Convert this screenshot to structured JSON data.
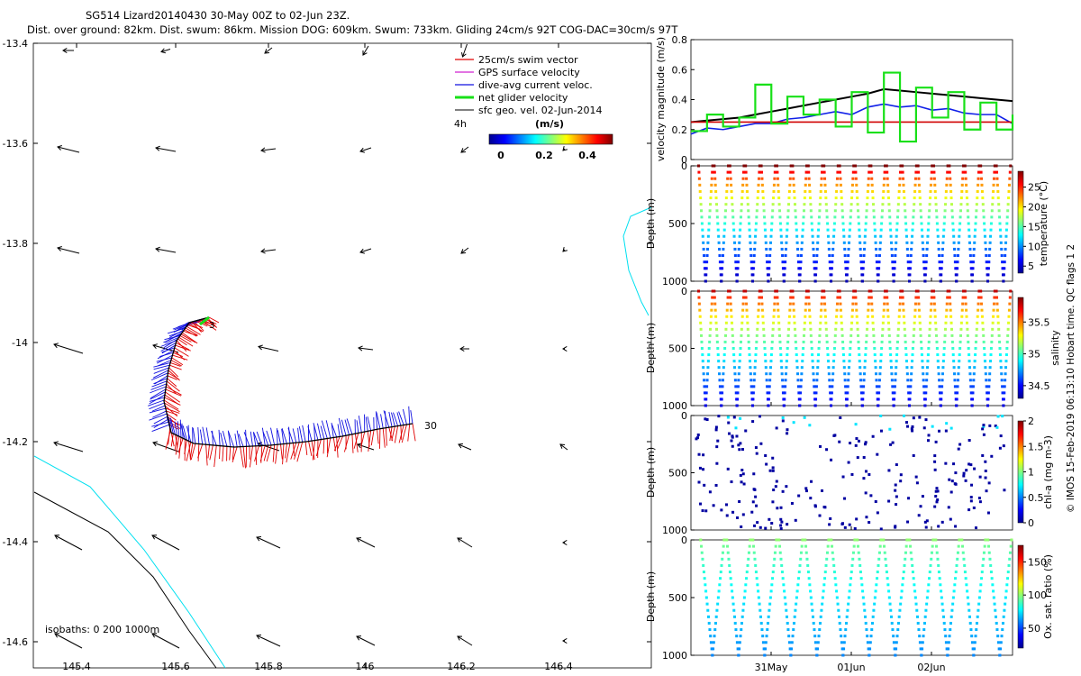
{
  "title": {
    "line1": "SG514 Lizard20140430 30-May 00Z to 02-Jun 23Z.",
    "line2": "Dist. over ground: 82km. Dist. swum: 86km. Mission DOG: 609km. Swum: 733km. Gliding 24cm/s 92T COG-DAC=30cm/s 97T"
  },
  "legend": {
    "items": [
      {
        "label": "25cm/s swim vector",
        "color": "#e00000"
      },
      {
        "label": "GPS surface velocity",
        "color": "#d020d0"
      },
      {
        "label": "dive-avg current veloc.",
        "color": "#1010e0"
      },
      {
        "label": "net glider velocity",
        "color": "#18e018"
      },
      {
        "label": "sfc geo. vel. 02-Jun-2014",
        "color": "#000000"
      }
    ],
    "scale_label": "4h",
    "colorbar_unit": "(m/s)",
    "colorbar_ticks": [
      "0",
      "0.2",
      "0.4"
    ]
  },
  "map": {
    "xticks": [
      "145.4",
      "145.6",
      "145.8",
      "146",
      "146.2",
      "146.4"
    ],
    "yticks": [
      "-13.4",
      "-13.6",
      "-13.8",
      "-14",
      "-14.2",
      "-14.4",
      "-14.6"
    ],
    "isobaths_label": "isobaths: 0   200  1000m",
    "start_label": "3",
    "end_label": "30"
  },
  "side_label": "© IMOS 15-Feb-2019 06:13:10 Hobart time. QC flags 1  2",
  "time_axis": [
    "31May",
    "01Jun",
    "02Jun"
  ],
  "chart_data": [
    {
      "type": "line",
      "ylabel": "velocity magnitude (m/s)",
      "ylim": [
        0,
        0.8
      ],
      "yticks": [
        "0",
        "0.2",
        "0.4",
        "0.6",
        "0.8"
      ],
      "x_days": [
        0,
        0.2,
        0.4,
        0.6,
        0.8,
        1.0,
        1.2,
        1.4,
        1.6,
        1.8,
        2.0,
        2.2,
        2.4,
        2.6,
        2.8,
        3.0,
        3.2,
        3.4,
        3.6,
        3.8,
        4.0
      ],
      "series": [
        {
          "color": "#000000",
          "values": [
            0.25,
            0.26,
            0.27,
            0.28,
            0.3,
            0.32,
            0.34,
            0.36,
            0.38,
            0.4,
            0.42,
            0.44,
            0.47,
            0.46,
            0.45,
            0.44,
            0.43,
            0.42,
            0.41,
            0.4,
            0.39
          ]
        },
        {
          "color": "#1020e8",
          "values": [
            0.17,
            0.21,
            0.2,
            0.22,
            0.24,
            0.24,
            0.27,
            0.28,
            0.3,
            0.32,
            0.3,
            0.35,
            0.37,
            0.35,
            0.36,
            0.33,
            0.34,
            0.31,
            0.3,
            0.3,
            0.24
          ]
        },
        {
          "color": "#d00000",
          "values": [
            0.25,
            0.25,
            0.25,
            0.25,
            0.25,
            0.25,
            0.25,
            0.25,
            0.25,
            0.25,
            0.25,
            0.25,
            0.25,
            0.25,
            0.25,
            0.25,
            0.25,
            0.25,
            0.25,
            0.25,
            0.25
          ]
        },
        {
          "color": "#18e018",
          "values": [
            0.19,
            0.3,
            0.22,
            0.28,
            0.5,
            0.24,
            0.42,
            0.3,
            0.4,
            0.22,
            0.45,
            0.18,
            0.58,
            0.12,
            0.48,
            0.28,
            0.45,
            0.2,
            0.38,
            0.2,
            0.3
          ]
        }
      ]
    },
    {
      "type": "scatter",
      "ylabel": "Depth (m)",
      "ylim": [
        1000,
        0
      ],
      "yticks": [
        "0",
        "500",
        "1000"
      ],
      "colorbar_label": "temperature (°C)",
      "colorbar_ticks": [
        "5",
        "10",
        "15",
        "20",
        "25"
      ],
      "colorbar_range": [
        3,
        29
      ],
      "dives": 20,
      "surface_value": 29,
      "deep_value": 4
    },
    {
      "type": "scatter",
      "ylabel": "Depth (m)",
      "ylim": [
        1000,
        0
      ],
      "yticks": [
        "0",
        "500",
        "1000"
      ],
      "colorbar_label": "salinity",
      "colorbar_ticks": [
        "34.5",
        "35",
        "35.5"
      ],
      "colorbar_range": [
        34.3,
        35.9
      ],
      "dives": 20,
      "surface_value": 35.8,
      "deep_value": 34.45
    },
    {
      "type": "scatter",
      "ylabel": "Depth (m)",
      "ylim": [
        1000,
        0
      ],
      "yticks": [
        "0",
        "500",
        "1000"
      ],
      "colorbar_label": "chl-a (mg m-3)",
      "colorbar_ticks": [
        "0",
        "0.5",
        "1",
        "1.5",
        "2"
      ],
      "colorbar_range": [
        0,
        2
      ],
      "dives": 20,
      "surface_value": 0.6,
      "deep_value": 0.0
    },
    {
      "type": "scatter",
      "ylabel": "Depth (m)",
      "ylim": [
        1000,
        0
      ],
      "yticks": [
        "0",
        "500",
        "1000"
      ],
      "colorbar_label": "Ox. sat. ratio (%)",
      "colorbar_ticks": [
        "50",
        "100",
        "150"
      ],
      "colorbar_range": [
        20,
        175
      ],
      "dives": 12,
      "surface_value": 100,
      "deep_value": 60
    }
  ]
}
